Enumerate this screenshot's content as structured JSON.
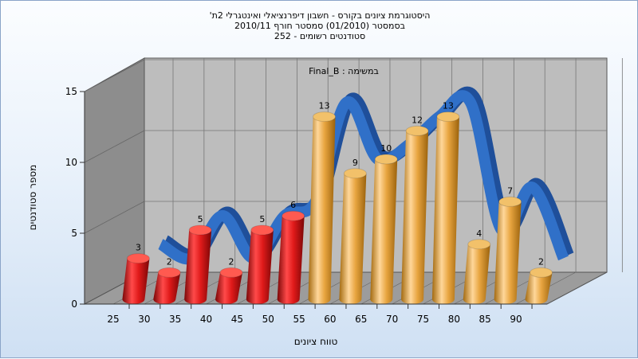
{
  "title_lines": [
    "היסטוגרמת ציונים בקורס - חשבון דיפרנציאלי ואינטגרלי 2ת'",
    "בסמסטר  (01/2010)  סמסטר חורף  2010/11",
    "סטודנטים רשומים - 252"
  ],
  "chart_data": {
    "type": "bar",
    "subtitle": "במשימה : Final_B",
    "xlabel": "טווח ציונים",
    "ylabel": "מספר סטודנטים",
    "ylim": [
      0,
      15
    ],
    "y_ticks": [
      0,
      5,
      10,
      15
    ],
    "x_ticks": [
      25,
      30,
      35,
      40,
      45,
      50,
      55,
      60,
      65,
      70,
      75,
      80,
      85,
      90
    ],
    "bars": [
      {
        "x": 27.5,
        "value": 3,
        "color": "red"
      },
      {
        "x": 32.5,
        "value": 2,
        "color": "red"
      },
      {
        "x": 37.5,
        "value": 5,
        "color": "red"
      },
      {
        "x": 42.5,
        "value": 2,
        "color": "red"
      },
      {
        "x": 47.5,
        "value": 5,
        "color": "red"
      },
      {
        "x": 52.5,
        "value": 6,
        "color": "red"
      },
      {
        "x": 57.5,
        "value": 13,
        "color": "gold"
      },
      {
        "x": 62.5,
        "value": 9,
        "color": "gold"
      },
      {
        "x": 67.5,
        "value": 10,
        "color": "gold"
      },
      {
        "x": 72.5,
        "value": 12,
        "color": "gold"
      },
      {
        "x": 77.5,
        "value": 13,
        "color": "gold"
      },
      {
        "x": 82.5,
        "value": 4,
        "color": "gold"
      },
      {
        "x": 87.5,
        "value": 7,
        "color": "gold"
      },
      {
        "x": 92.5,
        "value": 2,
        "color": "gold"
      }
    ],
    "back_line": {
      "x": [
        27.5,
        32.5,
        37.5,
        42.5,
        47.5,
        52.5,
        57.5,
        62.5,
        67.5,
        72.5,
        77.5,
        82.5,
        87.5,
        92.5
      ],
      "y": [
        3,
        2,
        5,
        2,
        5,
        6,
        13,
        9,
        10,
        12,
        13,
        4,
        7,
        2
      ],
      "color": "#3070c8"
    },
    "colors": {
      "red": "#e0201c",
      "gold": "#e6a640",
      "ribbon": "#3070c8",
      "back_wall": "#bdbdbd",
      "side_wall": "#8c8c8c",
      "floor": "#9a9a9a"
    },
    "grid": true
  }
}
